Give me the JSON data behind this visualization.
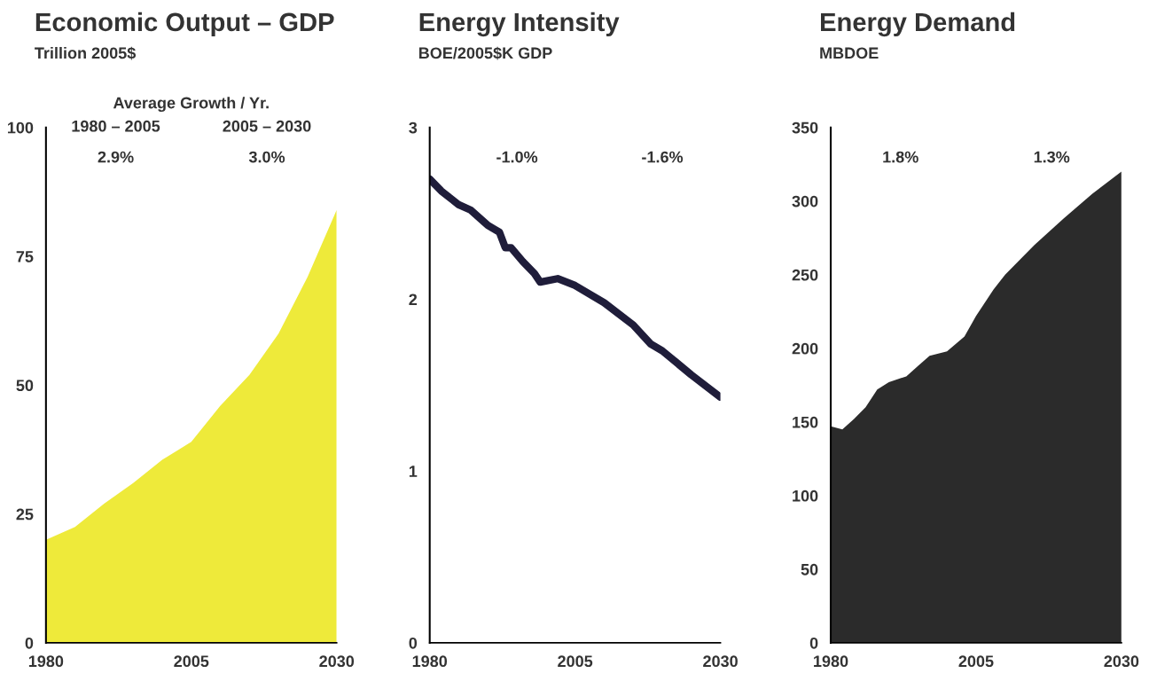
{
  "chart_data": [
    {
      "type": "area",
      "title": "Economic Output – GDP",
      "subtitle": "Trillion 2005$",
      "x": [
        1980,
        1985,
        1990,
        1995,
        2000,
        2005,
        2010,
        2015,
        2020,
        2025,
        2030
      ],
      "series": [
        {
          "color": "#eeea3a",
          "values": [
            20,
            22.5,
            27,
            31,
            35.5,
            39,
            46,
            52,
            60,
            71,
            84
          ]
        }
      ],
      "xlim": [
        1980,
        2030
      ],
      "xticks": [
        1980,
        2005,
        2030
      ],
      "ylim": [
        0,
        100
      ],
      "yticks": [
        0,
        25,
        50,
        75,
        100
      ],
      "grid": false,
      "annotations": [
        "Average Growth / Yr.",
        "1980 – 2005",
        "2005 – 2030",
        "2.9%",
        "3.0%"
      ]
    },
    {
      "type": "line",
      "title": "Energy Intensity",
      "subtitle": "BOE/2005$K GDP",
      "x": [
        1980,
        1982,
        1985,
        1987,
        1990,
        1992,
        1993,
        1994,
        1996,
        1998,
        1999,
        2002,
        2005,
        2010,
        2015,
        2018,
        2020,
        2025,
        2030
      ],
      "series": [
        {
          "color": "#1f1d3a",
          "values": [
            2.7,
            2.63,
            2.55,
            2.52,
            2.43,
            2.39,
            2.3,
            2.3,
            2.22,
            2.15,
            2.1,
            2.12,
            2.08,
            1.98,
            1.85,
            1.74,
            1.7,
            1.56,
            1.43
          ]
        }
      ],
      "xlim": [
        1980,
        2030
      ],
      "xticks": [
        1980,
        2005,
        2030
      ],
      "ylim": [
        0,
        3
      ],
      "yticks": [
        0,
        1,
        2,
        3
      ],
      "grid": false,
      "annotations": [
        "-1.0%",
        "-1.6%"
      ]
    },
    {
      "type": "area",
      "title": "Energy Demand",
      "subtitle": "MBDOE",
      "x": [
        1980,
        1982,
        1984,
        1986,
        1988,
        1990,
        1993,
        1995,
        1997,
        2000,
        2003,
        2005,
        2008,
        2010,
        2015,
        2020,
        2025,
        2030
      ],
      "series": [
        {
          "color": "#2b2b2b",
          "values": [
            147,
            145,
            152,
            160,
            172,
            177,
            181,
            188,
            195,
            198,
            208,
            222,
            240,
            250,
            270,
            288,
            305,
            320
          ]
        }
      ],
      "xlim": [
        1980,
        2030
      ],
      "xticks": [
        1980,
        2005,
        2030
      ],
      "ylim": [
        0,
        350
      ],
      "yticks": [
        0,
        50,
        100,
        150,
        200,
        250,
        300,
        350
      ],
      "grid": false,
      "annotations": [
        "1.8%",
        "1.3%"
      ]
    }
  ]
}
